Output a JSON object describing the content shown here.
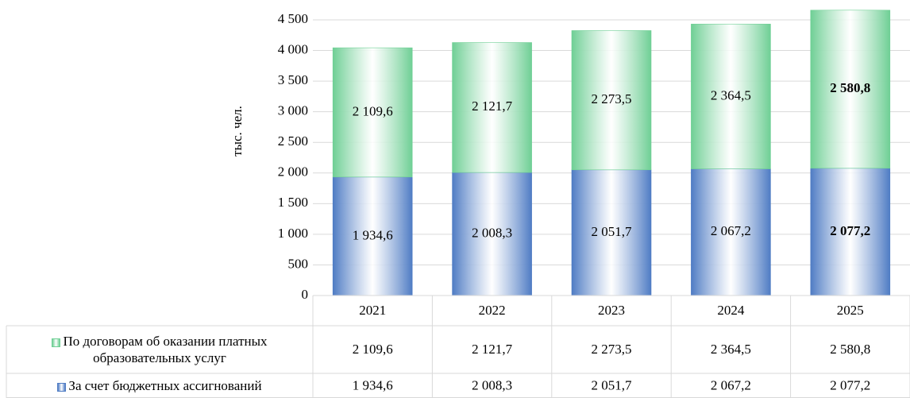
{
  "chart_data": {
    "type": "stacked_bar",
    "y_axis_label": "тыс. чел.",
    "categories": [
      "2021",
      "2022",
      "2023",
      "2024",
      "2025"
    ],
    "series": [
      {
        "name": "За счет бюджетных ассигнований",
        "color": "#4f7cc4",
        "values": [
          1934.6,
          2008.3,
          2051.7,
          2067.2,
          2077.2
        ],
        "value_labels": [
          "1 934,6",
          "2 008,3",
          "2 051,7",
          "2 067,2",
          "2 077,2"
        ]
      },
      {
        "name": "По договорам об оказании платных образовательных услуг",
        "color": "#6fcf95",
        "values": [
          2109.6,
          2121.7,
          2273.5,
          2364.5,
          2580.8
        ],
        "value_labels": [
          "2 109,6",
          "2 121,7",
          "2 273,5",
          "2 364,5",
          "2 580,8"
        ]
      }
    ],
    "ylim": [
      0,
      4500
    ],
    "yticks": [
      0,
      500,
      {
        "value": 1000,
        "label": "1 000"
      },
      {
        "value": 1500,
        "label": "1 500"
      },
      {
        "value": 2000,
        "label": "2 000"
      },
      {
        "value": 2500,
        "label": "2 500"
      },
      {
        "value": 3000,
        "label": "3 000"
      },
      {
        "value": 3500,
        "label": "3 500"
      },
      {
        "value": 4000,
        "label": "4 000"
      },
      {
        "value": 4500,
        "label": "4 500"
      }
    ],
    "grid": true
  }
}
